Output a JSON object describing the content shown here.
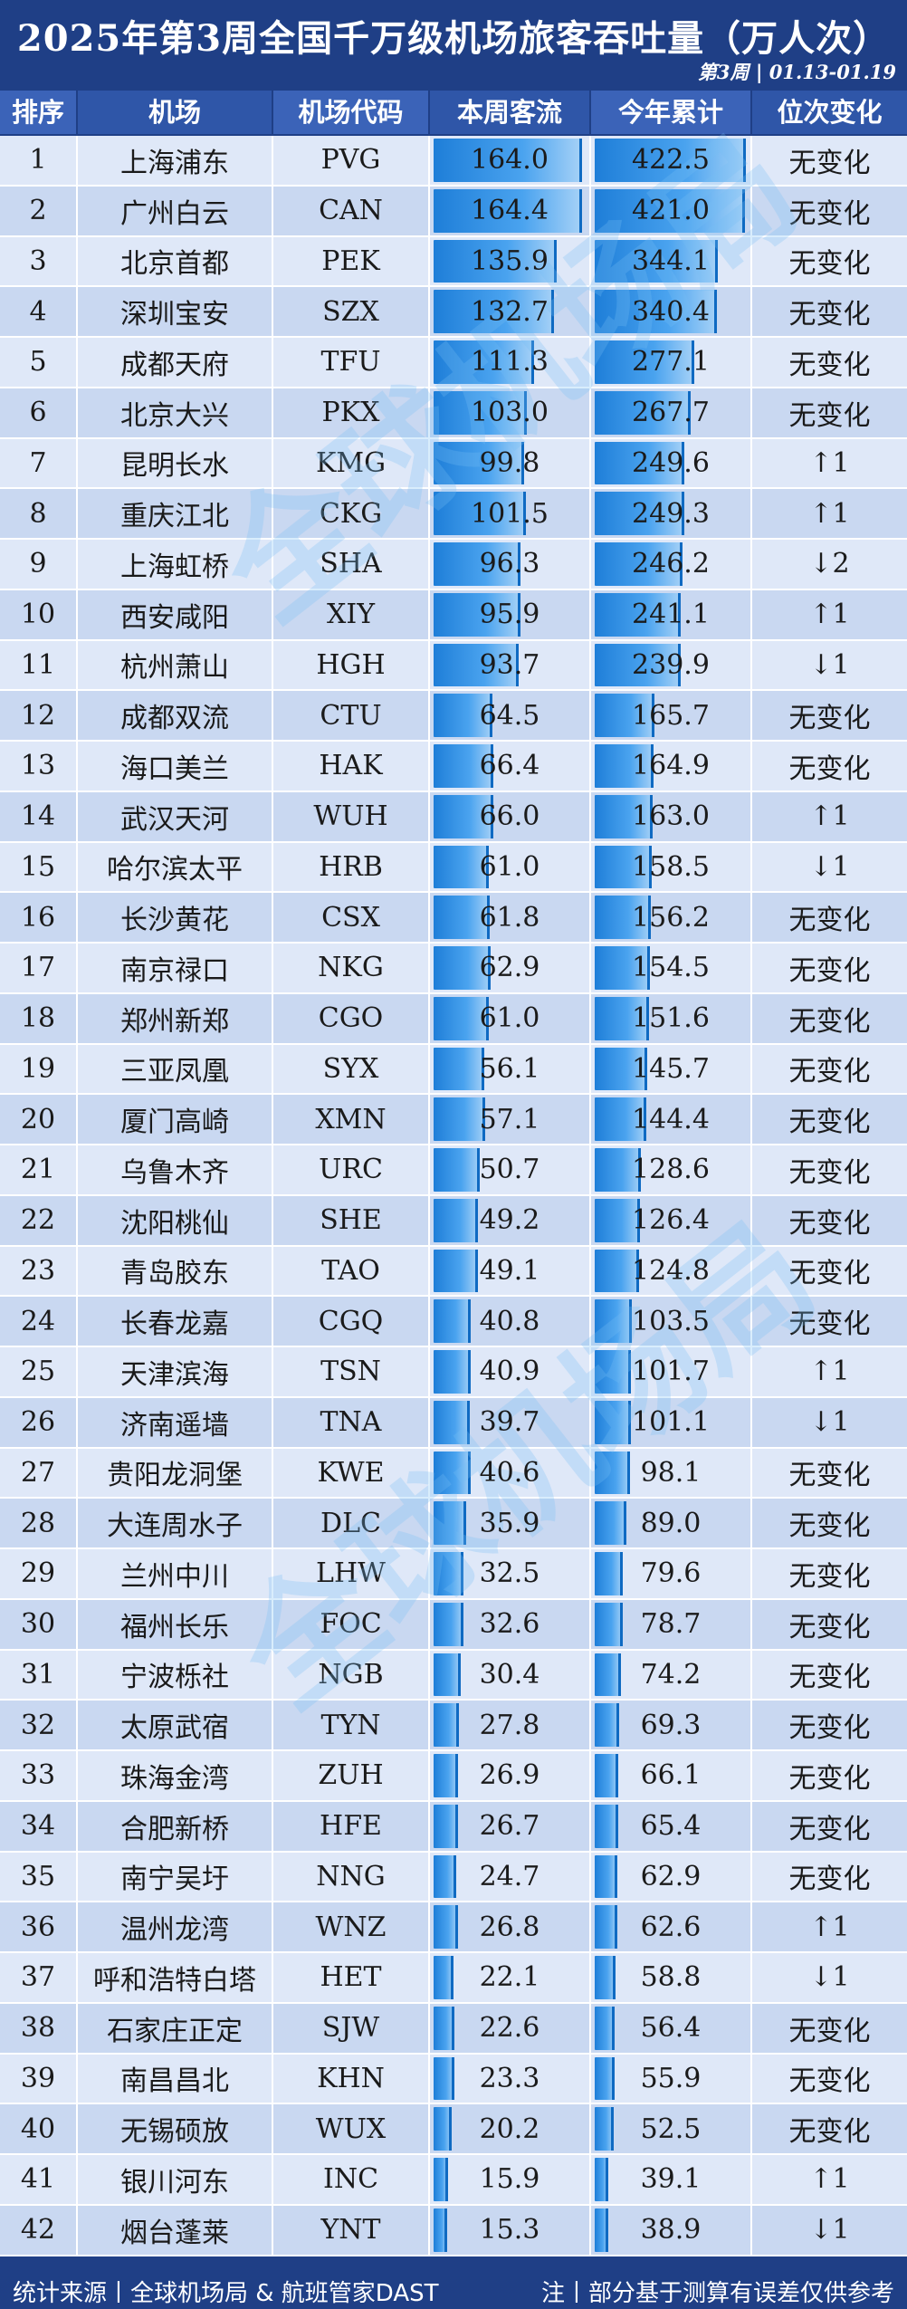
{
  "header": {
    "title": "2025年第3周全国千万级机场旅客吞吐量（万人次）",
    "subtitle": "第3周 | 01.13-01.19"
  },
  "columns": [
    "排序",
    "机场",
    "机场代码",
    "本周客流",
    "今年累计",
    "位次变化"
  ],
  "rows": [
    {
      "rank": "1",
      "name": "上海浦东",
      "code": "PVG",
      "week": "164.0",
      "total": "422.5",
      "change": "无变化"
    },
    {
      "rank": "2",
      "name": "广州白云",
      "code": "CAN",
      "week": "164.4",
      "total": "421.0",
      "change": "无变化"
    },
    {
      "rank": "3",
      "name": "北京首都",
      "code": "PEK",
      "week": "135.9",
      "total": "344.1",
      "change": "无变化"
    },
    {
      "rank": "4",
      "name": "深圳宝安",
      "code": "SZX",
      "week": "132.7",
      "total": "340.4",
      "change": "无变化"
    },
    {
      "rank": "5",
      "name": "成都天府",
      "code": "TFU",
      "week": "111.3",
      "total": "277.1",
      "change": "无变化"
    },
    {
      "rank": "6",
      "name": "北京大兴",
      "code": "PKX",
      "week": "103.0",
      "total": "267.7",
      "change": "无变化"
    },
    {
      "rank": "7",
      "name": "昆明长水",
      "code": "KMG",
      "week": "99.8",
      "total": "249.6",
      "change": "↑1"
    },
    {
      "rank": "8",
      "name": "重庆江北",
      "code": "CKG",
      "week": "101.5",
      "total": "249.3",
      "change": "↑1"
    },
    {
      "rank": "9",
      "name": "上海虹桥",
      "code": "SHA",
      "week": "96.3",
      "total": "246.2",
      "change": "↓2"
    },
    {
      "rank": "10",
      "name": "西安咸阳",
      "code": "XIY",
      "week": "95.9",
      "total": "241.1",
      "change": "↑1"
    },
    {
      "rank": "11",
      "name": "杭州萧山",
      "code": "HGH",
      "week": "93.7",
      "total": "239.9",
      "change": "↓1"
    },
    {
      "rank": "12",
      "name": "成都双流",
      "code": "CTU",
      "week": "64.5",
      "total": "165.7",
      "change": "无变化"
    },
    {
      "rank": "13",
      "name": "海口美兰",
      "code": "HAK",
      "week": "66.4",
      "total": "164.9",
      "change": "无变化"
    },
    {
      "rank": "14",
      "name": "武汉天河",
      "code": "WUH",
      "week": "66.0",
      "total": "163.0",
      "change": "↑1"
    },
    {
      "rank": "15",
      "name": "哈尔滨太平",
      "code": "HRB",
      "week": "61.0",
      "total": "158.5",
      "change": "↓1"
    },
    {
      "rank": "16",
      "name": "长沙黄花",
      "code": "CSX",
      "week": "61.8",
      "total": "156.2",
      "change": "无变化"
    },
    {
      "rank": "17",
      "name": "南京禄口",
      "code": "NKG",
      "week": "62.9",
      "total": "154.5",
      "change": "无变化"
    },
    {
      "rank": "18",
      "name": "郑州新郑",
      "code": "CGO",
      "week": "61.0",
      "total": "151.6",
      "change": "无变化"
    },
    {
      "rank": "19",
      "name": "三亚凤凰",
      "code": "SYX",
      "week": "56.1",
      "total": "145.7",
      "change": "无变化"
    },
    {
      "rank": "20",
      "name": "厦门高崎",
      "code": "XMN",
      "week": "57.1",
      "total": "144.4",
      "change": "无变化"
    },
    {
      "rank": "21",
      "name": "乌鲁木齐",
      "code": "URC",
      "week": "50.7",
      "total": "128.6",
      "change": "无变化"
    },
    {
      "rank": "22",
      "name": "沈阳桃仙",
      "code": "SHE",
      "week": "49.2",
      "total": "126.4",
      "change": "无变化"
    },
    {
      "rank": "23",
      "name": "青岛胶东",
      "code": "TAO",
      "week": "49.1",
      "total": "124.8",
      "change": "无变化"
    },
    {
      "rank": "24",
      "name": "长春龙嘉",
      "code": "CGQ",
      "week": "40.8",
      "total": "103.5",
      "change": "无变化"
    },
    {
      "rank": "25",
      "name": "天津滨海",
      "code": "TSN",
      "week": "40.9",
      "total": "101.7",
      "change": "↑1"
    },
    {
      "rank": "26",
      "name": "济南遥墙",
      "code": "TNA",
      "week": "39.7",
      "total": "101.1",
      "change": "↓1"
    },
    {
      "rank": "27",
      "name": "贵阳龙洞堡",
      "code": "KWE",
      "week": "40.6",
      "total": "98.1",
      "change": "无变化"
    },
    {
      "rank": "28",
      "name": "大连周水子",
      "code": "DLC",
      "week": "35.9",
      "total": "89.0",
      "change": "无变化"
    },
    {
      "rank": "29",
      "name": "兰州中川",
      "code": "LHW",
      "week": "32.5",
      "total": "79.6",
      "change": "无变化"
    },
    {
      "rank": "30",
      "name": "福州长乐",
      "code": "FOC",
      "week": "32.6",
      "total": "78.7",
      "change": "无变化"
    },
    {
      "rank": "31",
      "name": "宁波栎社",
      "code": "NGB",
      "week": "30.4",
      "total": "74.2",
      "change": "无变化"
    },
    {
      "rank": "32",
      "name": "太原武宿",
      "code": "TYN",
      "week": "27.8",
      "total": "69.3",
      "change": "无变化"
    },
    {
      "rank": "33",
      "name": "珠海金湾",
      "code": "ZUH",
      "week": "26.9",
      "total": "66.1",
      "change": "无变化"
    },
    {
      "rank": "34",
      "name": "合肥新桥",
      "code": "HFE",
      "week": "26.7",
      "total": "65.4",
      "change": "无变化"
    },
    {
      "rank": "35",
      "name": "南宁吴圩",
      "code": "NNG",
      "week": "24.7",
      "total": "62.9",
      "change": "无变化"
    },
    {
      "rank": "36",
      "name": "温州龙湾",
      "code": "WNZ",
      "week": "26.8",
      "total": "62.6",
      "change": "↑1"
    },
    {
      "rank": "37",
      "name": "呼和浩特白塔",
      "code": "HET",
      "week": "22.1",
      "total": "58.8",
      "change": "↓1"
    },
    {
      "rank": "38",
      "name": "石家庄正定",
      "code": "SJW",
      "week": "22.6",
      "total": "56.4",
      "change": "无变化"
    },
    {
      "rank": "39",
      "name": "南昌昌北",
      "code": "KHN",
      "week": "23.3",
      "total": "55.9",
      "change": "无变化"
    },
    {
      "rank": "40",
      "name": "无锡硕放",
      "code": "WUX",
      "week": "20.2",
      "total": "52.5",
      "change": "无变化"
    },
    {
      "rank": "41",
      "name": "银川河东",
      "code": "INC",
      "week": "15.9",
      "total": "39.1",
      "change": "↑1"
    },
    {
      "rank": "42",
      "name": "烟台蓬莱",
      "code": "YNT",
      "week": "15.3",
      "total": "38.9",
      "change": "↓1"
    }
  ],
  "footer": {
    "source": "统计来源丨全球机场局 & 航班管家DAST",
    "note": "注丨部分基于测算有误差仅供参考"
  },
  "watermark": "全球机场局",
  "colors": {
    "header_bg": "#1f3f86",
    "row_light": "#dfe8f8",
    "row_dark": "#c9d8f1",
    "bar": "#1e7ed8"
  }
}
